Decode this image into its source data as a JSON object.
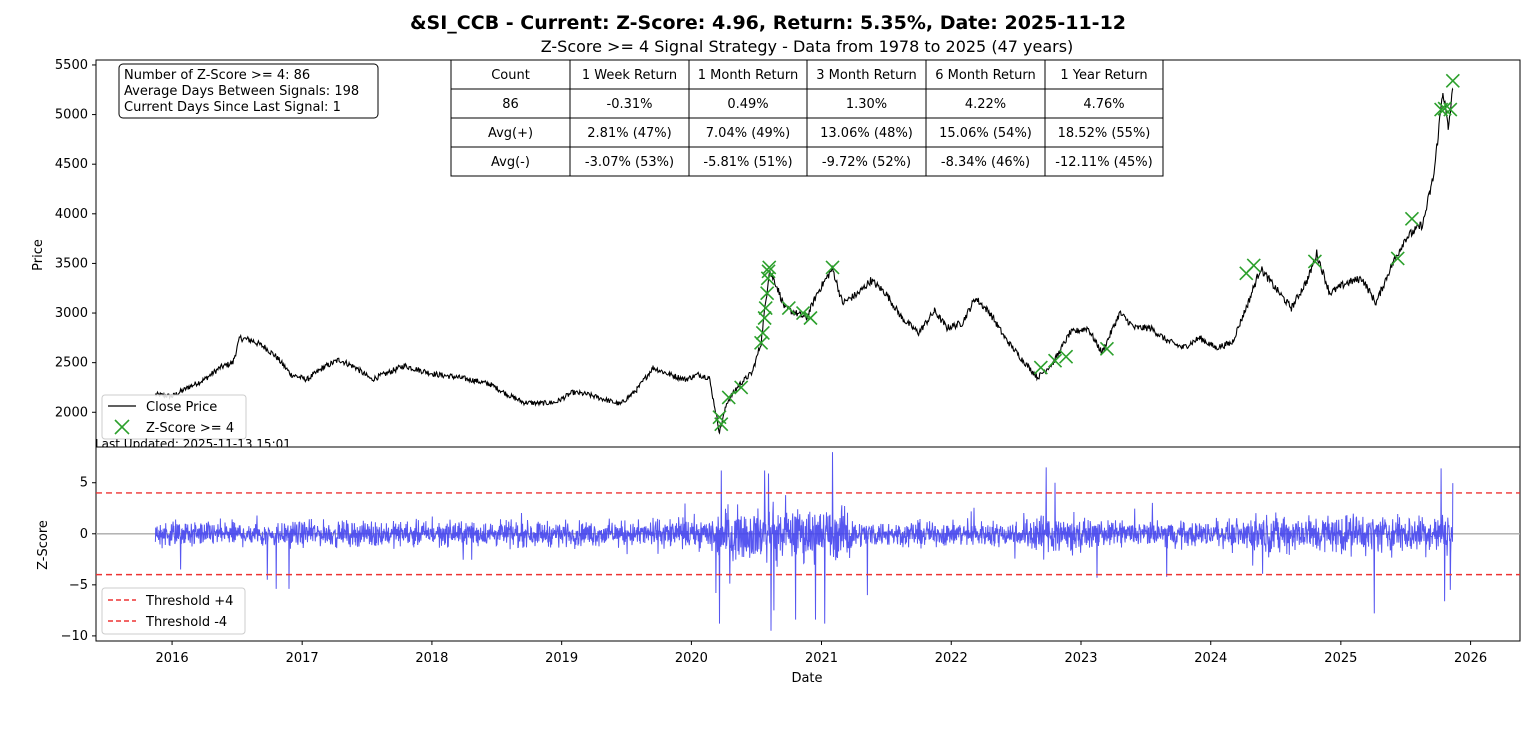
{
  "figure": {
    "title": "&SI_CCB - Current: Z-Score: 4.96, Return: 5.35%, Date: 2025-11-12",
    "subtitle": "Z-Score >= 4 Signal Strategy - Data from 1978 to 2025 (47 years)",
    "last_updated": "Last Updated: 2025-11-13 15:01"
  },
  "info_box": {
    "lines": [
      "Number of Z-Score >= 4: 86",
      "Average Days Between Signals: 198",
      "Current Days Since Last Signal: 1"
    ]
  },
  "returns_table": {
    "header": [
      "Count",
      "1 Week Return",
      "1 Month Return",
      "3 Month Return",
      "6 Month Return",
      "1 Year Return"
    ],
    "rows": [
      [
        "86",
        "-0.31%",
        "0.49%",
        "1.30%",
        "4.22%",
        "4.76%"
      ],
      [
        "Avg(+)",
        "2.81% (47%)",
        "7.04% (49%)",
        "13.06% (48%)",
        "15.06% (54%)",
        "18.52% (55%)"
      ],
      [
        "Avg(-)",
        "-3.07% (53%)",
        "-5.81% (51%)",
        "-9.72% (52%)",
        "-8.34% (46%)",
        "-12.11% (45%)"
      ]
    ]
  },
  "colors": {
    "price_line": "#000000",
    "signal_marker": "#2ca02c",
    "zscore_line": "#4444ee",
    "threshold": "#ee3333",
    "zero_line": "#aaaaaa"
  },
  "chart_data": [
    {
      "type": "line",
      "name": "price-panel",
      "ylabel": "Price",
      "xlabel": "",
      "ylim": [
        1650,
        5550
      ],
      "xlim": [
        "2015-06-01",
        "2026-05-20"
      ],
      "grid": false,
      "legend": {
        "placement": "lower-left",
        "entries": [
          "Close Price",
          "Z-Score >= 4"
        ]
      },
      "yticks": [
        2000,
        2500,
        3000,
        3500,
        4000,
        4500,
        5000,
        5500
      ],
      "series": [
        {
          "name": "Close Price",
          "points": [
            [
              "2015-11-15",
              2180
            ],
            [
              "2016-01-01",
              2160
            ],
            [
              "2016-02-15",
              2250
            ],
            [
              "2016-04-01",
              2330
            ],
            [
              "2016-05-15",
              2450
            ],
            [
              "2016-06-20",
              2500
            ],
            [
              "2016-07-10",
              2750
            ],
            [
              "2016-08-15",
              2720
            ],
            [
              "2016-09-20",
              2650
            ],
            [
              "2016-10-20",
              2560
            ],
            [
              "2016-12-01",
              2380
            ],
            [
              "2017-01-15",
              2330
            ],
            [
              "2017-03-01",
              2450
            ],
            [
              "2017-04-15",
              2530
            ],
            [
              "2017-06-01",
              2450
            ],
            [
              "2017-07-15",
              2330
            ],
            [
              "2017-09-01",
              2400
            ],
            [
              "2017-10-15",
              2470
            ],
            [
              "2017-12-01",
              2420
            ],
            [
              "2018-01-15",
              2380
            ],
            [
              "2018-03-01",
              2360
            ],
            [
              "2018-05-01",
              2320
            ],
            [
              "2018-06-15",
              2280
            ],
            [
              "2018-08-01",
              2180
            ],
            [
              "2018-09-15",
              2100
            ],
            [
              "2018-11-01",
              2090
            ],
            [
              "2018-12-15",
              2100
            ],
            [
              "2019-02-01",
              2200
            ],
            [
              "2019-03-15",
              2180
            ],
            [
              "2019-05-01",
              2130
            ],
            [
              "2019-06-15",
              2080
            ],
            [
              "2019-08-01",
              2230
            ],
            [
              "2019-09-15",
              2450
            ],
            [
              "2019-11-01",
              2380
            ],
            [
              "2019-12-15",
              2330
            ],
            [
              "2020-01-20",
              2380
            ],
            [
              "2020-02-20",
              2350
            ],
            [
              "2020-03-20",
              1800
            ],
            [
              "2020-04-10",
              2100
            ],
            [
              "2020-05-15",
              2280
            ],
            [
              "2020-06-20",
              2400
            ],
            [
              "2020-07-15",
              2700
            ],
            [
              "2020-08-07",
              3430
            ],
            [
              "2020-08-25",
              3300
            ],
            [
              "2020-09-20",
              3050
            ],
            [
              "2020-10-20",
              3000
            ],
            [
              "2020-11-20",
              2950
            ],
            [
              "2020-12-20",
              3200
            ],
            [
              "2021-02-01",
              3450
            ],
            [
              "2021-03-01",
              3100
            ],
            [
              "2021-04-15",
              3200
            ],
            [
              "2021-05-20",
              3330
            ],
            [
              "2021-07-01",
              3200
            ],
            [
              "2021-08-15",
              2950
            ],
            [
              "2021-10-01",
              2800
            ],
            [
              "2021-11-15",
              3020
            ],
            [
              "2021-12-20",
              2850
            ],
            [
              "2022-02-01",
              2900
            ],
            [
              "2022-03-10",
              3150
            ],
            [
              "2022-04-20",
              3000
            ],
            [
              "2022-06-01",
              2750
            ],
            [
              "2022-07-15",
              2550
            ],
            [
              "2022-09-01",
              2350
            ],
            [
              "2022-10-15",
              2500
            ],
            [
              "2022-12-01",
              2800
            ],
            [
              "2023-01-20",
              2850
            ],
            [
              "2023-03-01",
              2600
            ],
            [
              "2023-04-20",
              3000
            ],
            [
              "2023-06-01",
              2850
            ],
            [
              "2023-07-15",
              2850
            ],
            [
              "2023-09-01",
              2720
            ],
            [
              "2023-10-15",
              2650
            ],
            [
              "2023-12-01",
              2750
            ],
            [
              "2024-01-15",
              2650
            ],
            [
              "2024-03-01",
              2700
            ],
            [
              "2024-04-15",
              3100
            ],
            [
              "2024-05-20",
              3450
            ],
            [
              "2024-07-01",
              3250
            ],
            [
              "2024-08-15",
              3050
            ],
            [
              "2024-10-01",
              3350
            ],
            [
              "2024-10-25",
              3600
            ],
            [
              "2024-12-01",
              3200
            ],
            [
              "2025-01-15",
              3300
            ],
            [
              "2025-03-01",
              3350
            ],
            [
              "2025-04-10",
              3100
            ],
            [
              "2025-05-20",
              3450
            ],
            [
              "2025-07-01",
              3750
            ],
            [
              "2025-08-20",
              3900
            ],
            [
              "2025-09-20",
              4400
            ],
            [
              "2025-10-15",
              5250
            ],
            [
              "2025-10-30",
              4850
            ],
            [
              "2025-11-12",
              5250
            ]
          ]
        },
        {
          "name": "Z-Score >= 4",
          "points": [
            [
              "2020-03-20",
              1950
            ],
            [
              "2020-03-25",
              1880
            ],
            [
              "2020-04-15",
              2150
            ],
            [
              "2020-05-20",
              2250
            ],
            [
              "2020-07-15",
              2700
            ],
            [
              "2020-07-20",
              2800
            ],
            [
              "2020-07-25",
              2950
            ],
            [
              "2020-07-28",
              3050
            ],
            [
              "2020-08-01",
              3200
            ],
            [
              "2020-08-03",
              3350
            ],
            [
              "2020-08-05",
              3420
            ],
            [
              "2020-08-07",
              3460
            ],
            [
              "2020-10-01",
              3050
            ],
            [
              "2020-11-10",
              3000
            ],
            [
              "2020-12-01",
              2950
            ],
            [
              "2021-02-01",
              3460
            ],
            [
              "2022-09-10",
              2450
            ],
            [
              "2022-10-20",
              2520
            ],
            [
              "2022-11-20",
              2560
            ],
            [
              "2023-03-15",
              2640
            ],
            [
              "2024-04-10",
              3400
            ],
            [
              "2024-05-01",
              3480
            ],
            [
              "2024-10-20",
              3520
            ],
            [
              "2025-06-10",
              3550
            ],
            [
              "2025-07-20",
              3950
            ],
            [
              "2025-10-10",
              5050
            ],
            [
              "2025-10-20",
              5060
            ],
            [
              "2025-11-05",
              5050
            ],
            [
              "2025-11-12",
              5340
            ]
          ]
        }
      ]
    },
    {
      "type": "line",
      "name": "zscore-panel",
      "ylabel": "Z-Score",
      "xlabel": "Date",
      "ylim": [
        -10.5,
        8.5
      ],
      "xlim": [
        "2015-06-01",
        "2026-05-20"
      ],
      "grid": false,
      "legend": {
        "placement": "lower-left",
        "entries": [
          "Threshold +4",
          "Threshold -4"
        ]
      },
      "yticks": [
        -10,
        -5,
        0,
        5
      ],
      "xticks": [
        "2016",
        "2017",
        "2018",
        "2019",
        "2020",
        "2021",
        "2022",
        "2023",
        "2024",
        "2025",
        "2026"
      ],
      "thresholds": [
        4,
        -4
      ],
      "series": [
        {
          "name": "Z-Score",
          "range": [
            "2015-11-15",
            "2025-11-12"
          ],
          "spikes": [
            [
              "2016-09-25",
              -4.5
            ],
            [
              "2016-10-20",
              -5.4
            ],
            [
              "2016-11-25",
              -5.4
            ],
            [
              "2016-01-25",
              -3.5
            ],
            [
              "2020-03-10",
              -5.8
            ],
            [
              "2020-03-20",
              -8.8
            ],
            [
              "2020-03-25",
              6.2
            ],
            [
              "2020-07-25",
              6.2
            ],
            [
              "2020-08-05",
              5.9
            ],
            [
              "2020-08-12",
              -9.5
            ],
            [
              "2020-08-20",
              -7.5
            ],
            [
              "2020-10-20",
              -8.4
            ],
            [
              "2020-12-15",
              -8.4
            ],
            [
              "2021-01-10",
              -8.8
            ],
            [
              "2021-02-01",
              8.0
            ],
            [
              "2021-05-10",
              -6.0
            ],
            [
              "2022-09-25",
              6.5
            ],
            [
              "2022-10-20",
              5.0
            ],
            [
              "2023-02-15",
              -4.3
            ],
            [
              "2023-08-30",
              -4.2
            ],
            [
              "2025-04-05",
              -7.8
            ],
            [
              "2025-10-10",
              6.4
            ],
            [
              "2025-10-20",
              -6.6
            ],
            [
              "2025-11-05",
              -5.5
            ],
            [
              "2025-11-12",
              4.96
            ]
          ]
        }
      ]
    }
  ]
}
